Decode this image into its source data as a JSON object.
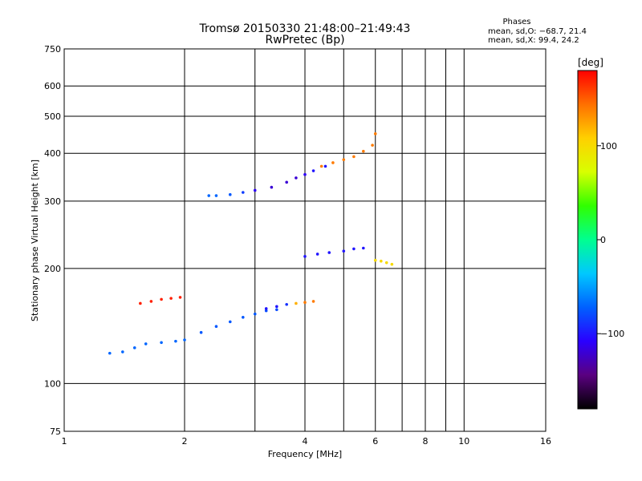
{
  "chart_data": {
    "type": "scatter",
    "title": "Tromsø 20150330 21:48:00–21:49:43",
    "subtitle": "RwPretec (Bp)",
    "xlabel": "Frequency [MHz]",
    "ylabel": "Stationary phase Virtual Height [km]",
    "x_scale": "log",
    "y_scale": "log",
    "xlim": [
      1,
      16
    ],
    "ylim": [
      75,
      750
    ],
    "x_ticks": [
      1,
      2,
      4,
      6,
      8,
      10,
      16
    ],
    "x_tick_labels": [
      "1",
      "2",
      "4",
      "6",
      "8",
      "10",
      "16"
    ],
    "x_grid": [
      2,
      3,
      4,
      5,
      6,
      7,
      8,
      9,
      10
    ],
    "y_ticks": [
      75,
      100,
      200,
      300,
      400,
      500,
      600,
      750
    ],
    "y_tick_labels": [
      "75",
      "100",
      "200",
      "300",
      "400",
      "500",
      "600",
      "750"
    ],
    "y_grid": [
      100,
      200,
      300,
      400,
      500,
      600
    ],
    "grid": true,
    "stats": {
      "heading": "Phases",
      "line1": "mean, sd,O: −68.7, 21.4",
      "line2": "mean, sd,X:  99.4, 24.2"
    },
    "colorbar": {
      "label": "[deg]",
      "range": [
        -180,
        180
      ],
      "ticks": [
        100,
        0,
        -100
      ],
      "tick_labels": [
        "100",
        "0",
        "−100"
      ],
      "colors": [
        "#000000",
        "#5a0080",
        "#2a00ff",
        "#0060ff",
        "#00c8ff",
        "#00ff90",
        "#30ff00",
        "#d8ff00",
        "#ffd000",
        "#ff7000",
        "#ff0000"
      ]
    },
    "series": [
      {
        "x": [
          1.3,
          1.4,
          1.5,
          1.6,
          1.75,
          1.9,
          2.0,
          2.2,
          2.4,
          2.6,
          2.8,
          3.0,
          3.2,
          3.4
        ],
        "y": [
          120,
          121,
          124,
          127,
          128,
          129,
          130,
          136,
          141,
          145,
          149,
          152,
          155,
          156
        ],
        "phase": [
          -70,
          -70,
          -70,
          -70,
          -70,
          -70,
          -70,
          -75,
          -75,
          -75,
          -75,
          -75,
          -80,
          -80
        ]
      },
      {
        "x": [
          3.2,
          3.4,
          3.6,
          3.8,
          4.0,
          4.2
        ],
        "y": [
          157,
          159,
          161,
          162,
          163,
          164
        ],
        "phase": [
          -100,
          -100,
          -90,
          120,
          140,
          140
        ]
      },
      {
        "x": [
          1.55,
          1.65,
          1.75,
          1.85,
          1.95
        ],
        "y": [
          162,
          164,
          166,
          167,
          168
        ],
        "phase": [
          170,
          170,
          170,
          170,
          170
        ]
      },
      {
        "x": [
          2.3,
          2.4,
          2.6,
          2.8,
          3.0,
          3.3,
          3.6,
          3.8,
          4.0,
          4.2,
          4.5
        ],
        "y": [
          310,
          310,
          312,
          316,
          320,
          326,
          336,
          345,
          352,
          360,
          370
        ],
        "phase": [
          -70,
          -70,
          -75,
          -85,
          -110,
          -120,
          -120,
          -120,
          -110,
          -100,
          -100
        ]
      },
      {
        "x": [
          4.4,
          4.7,
          5.0,
          5.3,
          5.6,
          5.9,
          6.0
        ],
        "y": [
          370,
          378,
          385,
          392,
          405,
          420,
          450
        ],
        "phase": [
          140,
          140,
          140,
          140,
          140,
          140,
          140
        ]
      },
      {
        "x": [
          4.0,
          4.3,
          4.6,
          5.0,
          5.3,
          5.6
        ],
        "y": [
          215,
          218,
          220,
          222,
          225,
          226
        ],
        "phase": [
          -100,
          -100,
          -100,
          -100,
          -100,
          -100
        ]
      },
      {
        "x": [
          6.0,
          6.2,
          6.4,
          6.6
        ],
        "y": [
          210,
          209,
          207,
          205
        ],
        "phase": [
          100,
          100,
          100,
          100
        ]
      }
    ]
  }
}
